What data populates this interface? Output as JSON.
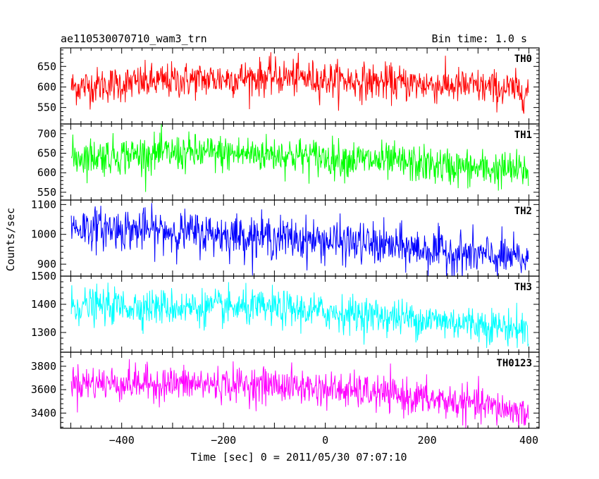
{
  "header": {
    "left": "ae110530070710_wam3_trn",
    "right": "Bin time: 1.0 s"
  },
  "chart_data": {
    "type": "line",
    "xlabel": "Time [sec] 0 = 2011/05/30 07:07:10",
    "ylabel": "Counts/sec",
    "xlim": [
      -520,
      420
    ],
    "xticks": [
      -400,
      -200,
      0,
      200,
      400
    ],
    "x_start": -499,
    "x_end": 399,
    "bin_time_s": 1.0,
    "panels": [
      {
        "name": "TH0",
        "color": "#ff0000",
        "ylim": [
          510,
          695
        ],
        "yticks": [
          550,
          600,
          650
        ],
        "trend": [
          [
            -499,
            600
          ],
          [
            -300,
            615
          ],
          [
            -100,
            625
          ],
          [
            100,
            612
          ],
          [
            300,
            600
          ],
          [
            399,
            590
          ]
        ],
        "noise": 22
      },
      {
        "name": "TH1",
        "color": "#00ff00",
        "ylim": [
          530,
          725
        ],
        "yticks": [
          550,
          600,
          650,
          700
        ],
        "trend": [
          [
            -499,
            640
          ],
          [
            -300,
            650
          ],
          [
            -100,
            648
          ],
          [
            100,
            630
          ],
          [
            300,
            610
          ],
          [
            399,
            605
          ]
        ],
        "noise": 24
      },
      {
        "name": "TH2",
        "color": "#0000ff",
        "ylim": [
          860,
          1115
        ],
        "yticks": [
          900,
          1000,
          1100
        ],
        "trend": [
          [
            -499,
            1025
          ],
          [
            -300,
            1010
          ],
          [
            -100,
            990
          ],
          [
            100,
            965
          ],
          [
            300,
            930
          ],
          [
            399,
            915
          ]
        ],
        "noise": 35
      },
      {
        "name": "TH3",
        "color": "#00ffff",
        "ylim": [
          1230,
          1500
        ],
        "yticks": [
          1300,
          1400,
          1500
        ],
        "trend": [
          [
            -499,
            1395
          ],
          [
            -300,
            1390
          ],
          [
            -100,
            1385
          ],
          [
            100,
            1360
          ],
          [
            300,
            1330
          ],
          [
            399,
            1310
          ]
        ],
        "noise": 32
      },
      {
        "name": "TH0123",
        "color": "#ff00ff",
        "ylim": [
          3270,
          3920
        ],
        "yticks": [
          3400,
          3600,
          3800
        ],
        "trend": [
          [
            -499,
            3660
          ],
          [
            -300,
            3650
          ],
          [
            -100,
            3640
          ],
          [
            100,
            3570
          ],
          [
            300,
            3470
          ],
          [
            399,
            3400
          ]
        ],
        "noise": 75
      }
    ]
  }
}
